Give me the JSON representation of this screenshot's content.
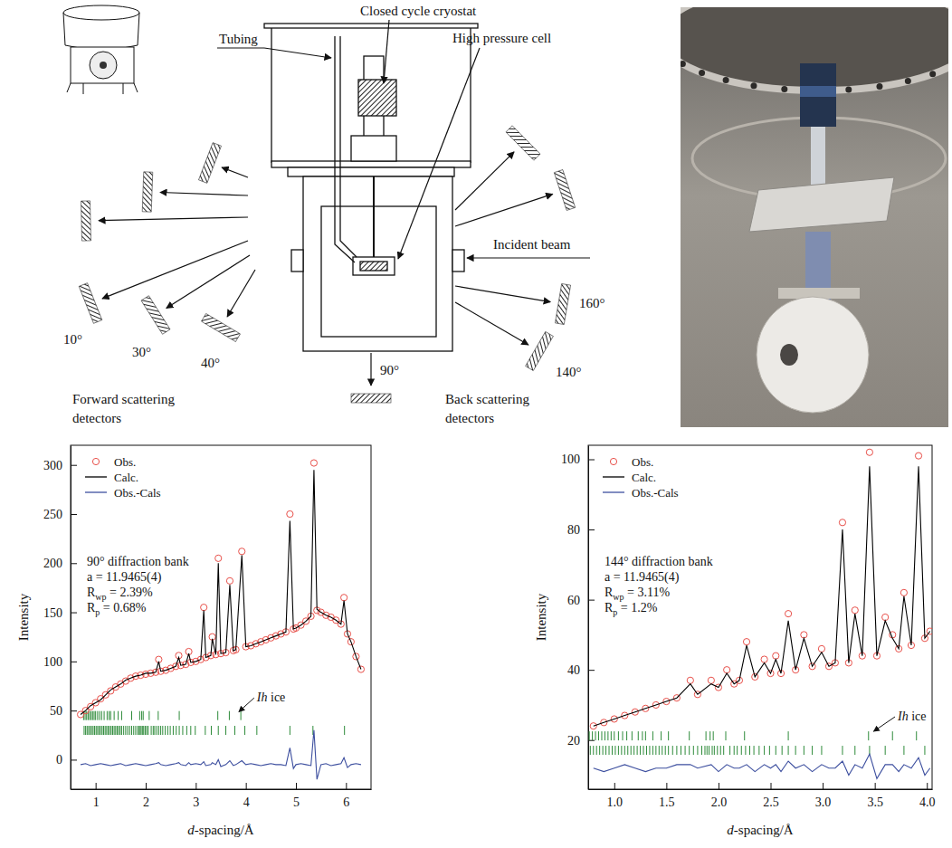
{
  "diagram": {
    "labels": {
      "tubing": "Tubing",
      "cryostat": "Closed cycle cryostat",
      "cell": "High pressure cell",
      "beam": "Incident beam"
    },
    "detector_angles": [
      "10°",
      "30°",
      "40°",
      "90°",
      "160°",
      "140°"
    ],
    "forward_caption": [
      "Forward scattering",
      "detectors"
    ],
    "back_caption": [
      "Back scattering",
      "detectors"
    ]
  },
  "chart_data": [
    {
      "type": "line",
      "x_label": "d-spacing/Å",
      "y_label": "Intensity",
      "xlim": [
        0.5,
        6.5
      ],
      "xticks": [
        1,
        2,
        3,
        4,
        5,
        6
      ],
      "ylim": [
        -30,
        320
      ],
      "yticks": [
        0,
        50,
        100,
        150,
        200,
        250,
        300
      ],
      "legend": "upper-left",
      "x": [
        0.7,
        0.8,
        0.9,
        1.0,
        1.1,
        1.2,
        1.3,
        1.4,
        1.5,
        1.6,
        1.7,
        1.8,
        1.9,
        2.0,
        2.1,
        2.2,
        2.26,
        2.3,
        2.4,
        2.5,
        2.6,
        2.66,
        2.7,
        2.8,
        2.86,
        2.9,
        3.0,
        3.1,
        3.16,
        3.2,
        3.3,
        3.33,
        3.4,
        3.45,
        3.5,
        3.6,
        3.68,
        3.75,
        3.8,
        3.92,
        4.0,
        4.1,
        4.2,
        4.3,
        4.4,
        4.5,
        4.6,
        4.7,
        4.8,
        4.88,
        4.95,
        5.0,
        5.1,
        5.2,
        5.3,
        5.36,
        5.42,
        5.5,
        5.6,
        5.7,
        5.8,
        5.9,
        5.96,
        6.03,
        6.1,
        6.2,
        6.3
      ],
      "series": [
        {
          "name": "Obs.",
          "type": "scatter",
          "marker": "open-circle",
          "color": "#e8504a",
          "values": [
            46,
            50,
            54,
            58,
            62,
            66,
            70,
            74,
            77,
            80,
            83,
            85,
            86,
            87,
            88,
            89,
            102,
            90,
            91,
            93,
            95,
            106,
            96,
            97,
            110,
            99,
            100,
            102,
            155,
            104,
            106,
            125,
            107,
            205,
            108,
            109,
            182,
            111,
            112,
            212,
            115,
            116,
            118,
            120,
            122,
            124,
            126,
            128,
            130,
            250,
            133,
            134,
            137,
            141,
            146,
            302,
            152,
            150,
            147,
            145,
            142,
            138,
            165,
            128,
            120,
            105,
            92
          ]
        },
        {
          "name": "Calc.",
          "type": "line",
          "color": "#000000",
          "values": [
            46,
            50,
            55,
            58,
            61,
            66,
            71,
            74,
            77,
            81,
            83,
            85,
            86,
            88,
            88,
            89,
            100,
            90,
            91,
            93,
            95,
            104,
            96,
            97,
            108,
            99,
            100,
            102,
            152,
            104,
            106,
            123,
            107,
            200,
            108,
            109,
            178,
            111,
            112,
            208,
            115,
            116,
            118,
            120,
            122,
            124,
            126,
            128,
            130,
            243,
            133,
            134,
            137,
            141,
            146,
            295,
            153,
            150,
            147,
            145,
            142,
            138,
            162,
            128,
            120,
            105,
            92
          ]
        },
        {
          "name": "Obs.-Cals",
          "type": "line",
          "color": "#3d4f9f",
          "values": [
            -5,
            -4,
            -6,
            -5,
            -4,
            -5,
            -6,
            -5,
            -4,
            -6,
            -5,
            -4,
            -5,
            -6,
            -5,
            -4,
            -3,
            -5,
            -6,
            -5,
            -4,
            -3,
            -5,
            -6,
            -3,
            -5,
            -4,
            -5,
            -2,
            -6,
            -5,
            -3,
            -5,
            0,
            -7,
            -5,
            -1,
            -6,
            -5,
            -1,
            -5,
            -4,
            -5,
            -6,
            -5,
            -4,
            -5,
            -5,
            -6,
            12,
            -9,
            -5,
            -4,
            -5,
            -6,
            30,
            -20,
            -5,
            -4,
            -6,
            -5,
            -4,
            2,
            -8,
            -5,
            -4,
            -5
          ]
        }
      ],
      "annotations": [
        [
          {
            "text": "90° diffraction bank"
          }
        ],
        [
          {
            "text": "a = 11.9465(4)"
          }
        ],
        [
          {
            "text": "R"
          },
          {
            "text": "wp",
            "subscript": true
          },
          {
            "text": " = 2.39%"
          }
        ],
        [
          {
            "text": "R"
          },
          {
            "text": "p",
            "subscript": true
          },
          {
            "text": " = 0.68%"
          }
        ]
      ],
      "phase_label": "Ih ice",
      "reflection_rows": [
        [
          3.9,
          3.67,
          3.44,
          2.67,
          2.25,
          2.07,
          1.95,
          1.92,
          1.88,
          1.72,
          1.52,
          1.45,
          1.37,
          1.3,
          1.27,
          1.23,
          1.17,
          1.12,
          1.08,
          1.04,
          1.0,
          0.97,
          0.94,
          0.91,
          0.88,
          0.85,
          0.82,
          0.79,
          0.76
        ],
        [
          5.97,
          5.34,
          4.88,
          4.22,
          3.98,
          3.78,
          3.6,
          3.45,
          3.31,
          3.19,
          2.99,
          2.9,
          2.82,
          2.74,
          2.67,
          2.61,
          2.55,
          2.49,
          2.44,
          2.39,
          2.34,
          2.3,
          2.26,
          2.22,
          2.18,
          2.15,
          2.11,
          2.05,
          2.02,
          1.99,
          1.96,
          1.94,
          1.91,
          1.89,
          1.87,
          1.84,
          1.8,
          1.76,
          1.72,
          1.68,
          1.64,
          1.6,
          1.56,
          1.52,
          1.49,
          1.46,
          1.43,
          1.4,
          1.37,
          1.34,
          1.31,
          1.28,
          1.25,
          1.22,
          1.19,
          1.16,
          1.13,
          1.1,
          1.07,
          1.04,
          1.01,
          0.98,
          0.95,
          0.92,
          0.89,
          0.86,
          0.83,
          0.8,
          0.77
        ]
      ]
    },
    {
      "type": "line",
      "x_label": "d-spacing/Å",
      "y_label": "Intensity",
      "xlim": [
        0.75,
        4.05
      ],
      "xticks": [
        {
          "value": 1,
          "label": "1.0"
        },
        1.5,
        {
          "value": 2,
          "label": "2.0"
        },
        2.5,
        {
          "value": 3,
          "label": "3.0"
        },
        3.5,
        {
          "value": 4,
          "label": "4.0"
        }
      ],
      "ylim": [
        6,
        104
      ],
      "yticks": [
        20,
        40,
        60,
        80,
        100
      ],
      "legend": "upper-left",
      "x": [
        0.8,
        0.9,
        1.0,
        1.1,
        1.2,
        1.3,
        1.4,
        1.5,
        1.6,
        1.73,
        1.8,
        1.93,
        2.0,
        2.08,
        2.15,
        2.2,
        2.27,
        2.35,
        2.44,
        2.5,
        2.55,
        2.6,
        2.67,
        2.74,
        2.82,
        2.9,
        2.99,
        3.06,
        3.12,
        3.19,
        3.25,
        3.31,
        3.38,
        3.45,
        3.52,
        3.6,
        3.67,
        3.73,
        3.78,
        3.85,
        3.92,
        3.98,
        4.03
      ],
      "series": [
        {
          "name": "Obs.",
          "type": "scatter",
          "marker": "open-circle",
          "color": "#e8504a",
          "values": [
            24,
            25,
            26,
            27,
            28,
            29,
            30,
            31,
            32,
            37,
            33,
            37,
            35,
            40,
            36,
            37,
            48,
            38,
            43,
            39,
            44,
            39,
            56,
            40,
            50,
            41,
            46,
            41,
            42,
            82,
            42,
            57,
            44,
            102,
            44,
            55,
            50,
            46,
            62,
            47,
            101,
            49,
            51
          ]
        },
        {
          "name": "Calc.",
          "type": "line",
          "color": "#000000",
          "values": [
            24,
            25,
            26,
            27,
            28,
            29,
            30,
            31,
            32,
            36,
            33,
            36,
            35,
            39,
            36,
            37,
            47,
            38,
            42,
            39,
            43,
            39,
            54,
            40,
            49,
            41,
            45,
            41,
            42,
            80,
            42,
            56,
            44,
            98,
            44,
            54,
            49,
            46,
            61,
            47,
            98,
            49,
            51
          ]
        },
        {
          "name": "Obs.-Cals",
          "type": "line",
          "color": "#3d4f9f",
          "values": [
            12,
            11,
            12,
            13,
            12,
            11,
            12,
            12,
            13,
            13,
            12,
            13,
            11,
            13,
            12,
            12,
            13,
            11,
            13,
            12,
            13,
            11,
            14,
            12,
            13,
            11,
            13,
            12,
            12,
            14,
            10,
            13,
            12,
            16,
            9,
            13,
            13,
            11,
            13,
            12,
            15,
            10,
            12
          ]
        }
      ],
      "annotations": [
        [
          {
            "text": "144° diffraction bank"
          }
        ],
        [
          {
            "text": "a = 11.9465(4)"
          }
        ],
        [
          {
            "text": "R"
          },
          {
            "text": "wp",
            "subscript": true
          },
          {
            "text": " = 3.11%"
          }
        ],
        [
          {
            "text": "R"
          },
          {
            "text": "p",
            "subscript": true
          },
          {
            "text": " = 1.2%"
          }
        ]
      ],
      "phase_label": "Ih ice",
      "reflection_rows": [
        [
          3.9,
          3.67,
          3.44,
          2.67,
          2.25,
          2.07,
          1.95,
          1.92,
          1.88,
          1.72,
          1.52,
          1.45,
          1.37,
          1.3,
          1.27,
          1.23,
          1.17,
          1.12,
          1.08,
          1.04,
          1.0,
          0.97,
          0.94,
          0.91,
          0.88,
          0.85,
          0.82,
          0.79,
          0.76
        ],
        [
          3.98,
          3.78,
          3.6,
          3.45,
          3.31,
          3.19,
          2.99,
          2.9,
          2.82,
          2.74,
          2.67,
          2.61,
          2.55,
          2.49,
          2.44,
          2.39,
          2.34,
          2.3,
          2.26,
          2.22,
          2.18,
          2.15,
          2.11,
          2.05,
          2.02,
          1.99,
          1.96,
          1.94,
          1.91,
          1.89,
          1.87,
          1.84,
          1.8,
          1.76,
          1.72,
          1.68,
          1.64,
          1.6,
          1.56,
          1.52,
          1.49,
          1.46,
          1.43,
          1.4,
          1.37,
          1.34,
          1.31,
          1.28,
          1.25,
          1.22,
          1.19,
          1.16,
          1.13,
          1.1,
          1.07,
          1.04,
          1.01,
          0.98,
          0.95,
          0.92,
          0.89,
          0.86,
          0.83,
          0.8,
          0.77
        ]
      ]
    }
  ]
}
